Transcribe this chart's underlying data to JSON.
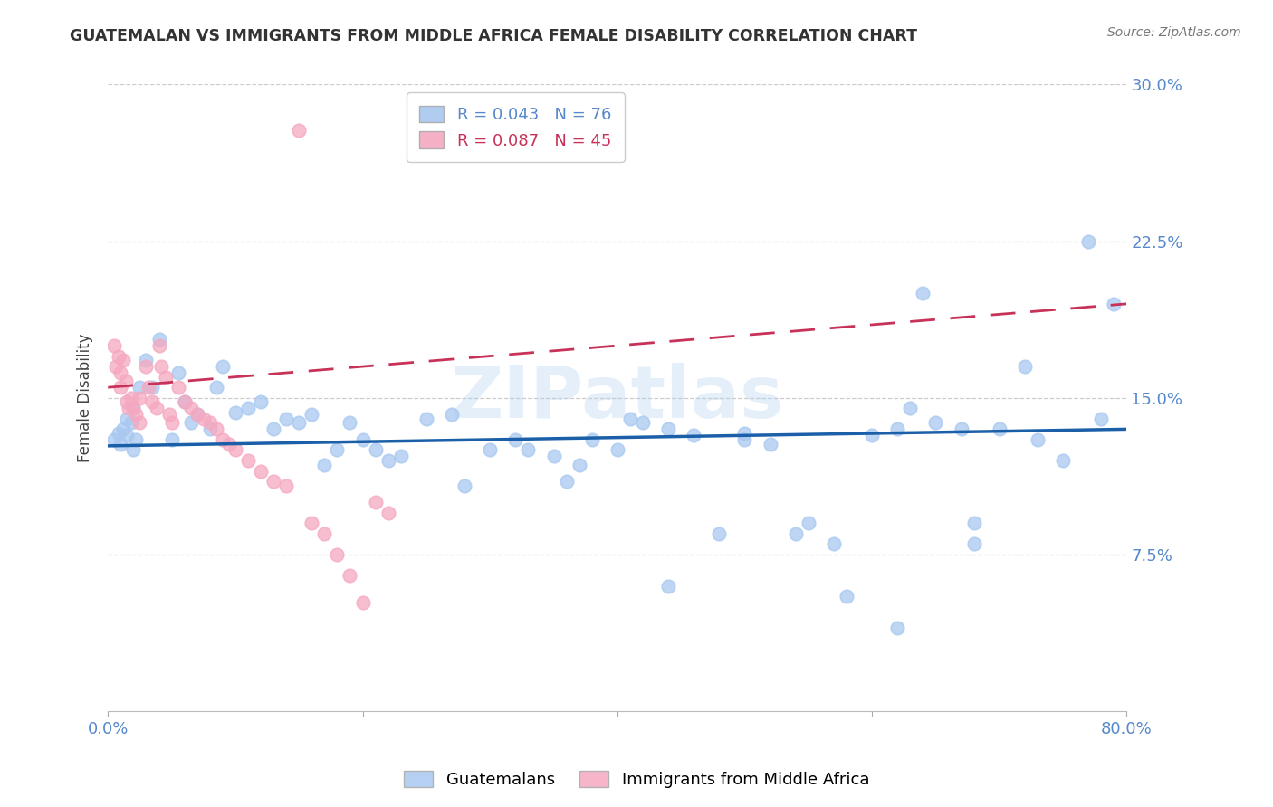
{
  "title": "GUATEMALAN VS IMMIGRANTS FROM MIDDLE AFRICA FEMALE DISABILITY CORRELATION CHART",
  "source": "Source: ZipAtlas.com",
  "ylabel": "Female Disability",
  "watermark": "ZIPatlas",
  "xlim": [
    0.0,
    0.8
  ],
  "ylim": [
    0.0,
    0.3
  ],
  "yticks": [
    0.075,
    0.15,
    0.225,
    0.3
  ],
  "yticklabels": [
    "7.5%",
    "15.0%",
    "22.5%",
    "30.0%"
  ],
  "blue_R": 0.043,
  "blue_N": 76,
  "pink_R": 0.087,
  "pink_N": 45,
  "blue_color": "#a8c8f0",
  "pink_color": "#f5a8c0",
  "blue_line_color": "#1a5fa8",
  "pink_line_color": "#c83258",
  "axis_color": "#5588cc",
  "legend_label_blue": "Guatemalans",
  "legend_label_pink": "Immigrants from Middle Africa",
  "blue_x": [
    0.005,
    0.008,
    0.01,
    0.012,
    0.015,
    0.015,
    0.018,
    0.02,
    0.02,
    0.022,
    0.025,
    0.03,
    0.035,
    0.04,
    0.05,
    0.055,
    0.06,
    0.065,
    0.07,
    0.08,
    0.085,
    0.09,
    0.1,
    0.11,
    0.12,
    0.13,
    0.14,
    0.15,
    0.16,
    0.17,
    0.18,
    0.19,
    0.2,
    0.21,
    0.22,
    0.23,
    0.25,
    0.27,
    0.28,
    0.3,
    0.32,
    0.33,
    0.35,
    0.37,
    0.38,
    0.4,
    0.41,
    0.42,
    0.44,
    0.46,
    0.48,
    0.5,
    0.52,
    0.54,
    0.55,
    0.57,
    0.58,
    0.6,
    0.62,
    0.63,
    0.65,
    0.67,
    0.68,
    0.7,
    0.72,
    0.73,
    0.75,
    0.77,
    0.78,
    0.79,
    0.5,
    0.62,
    0.68,
    0.64,
    0.44,
    0.36
  ],
  "blue_y": [
    0.13,
    0.133,
    0.128,
    0.135,
    0.14,
    0.132,
    0.138,
    0.145,
    0.125,
    0.13,
    0.155,
    0.168,
    0.155,
    0.178,
    0.13,
    0.162,
    0.148,
    0.138,
    0.142,
    0.135,
    0.155,
    0.165,
    0.143,
    0.145,
    0.148,
    0.135,
    0.14,
    0.138,
    0.142,
    0.118,
    0.125,
    0.138,
    0.13,
    0.125,
    0.12,
    0.122,
    0.14,
    0.142,
    0.108,
    0.125,
    0.13,
    0.125,
    0.122,
    0.118,
    0.13,
    0.125,
    0.14,
    0.138,
    0.135,
    0.132,
    0.085,
    0.133,
    0.128,
    0.085,
    0.09,
    0.08,
    0.055,
    0.132,
    0.135,
    0.145,
    0.138,
    0.135,
    0.09,
    0.135,
    0.165,
    0.13,
    0.12,
    0.225,
    0.14,
    0.195,
    0.13,
    0.04,
    0.08,
    0.2,
    0.06,
    0.11
  ],
  "pink_x": [
    0.005,
    0.006,
    0.008,
    0.01,
    0.01,
    0.012,
    0.014,
    0.015,
    0.016,
    0.018,
    0.02,
    0.022,
    0.025,
    0.025,
    0.03,
    0.032,
    0.035,
    0.038,
    0.04,
    0.042,
    0.045,
    0.048,
    0.05,
    0.055,
    0.06,
    0.065,
    0.07,
    0.075,
    0.08,
    0.085,
    0.09,
    0.095,
    0.1,
    0.11,
    0.12,
    0.13,
    0.14,
    0.15,
    0.16,
    0.17,
    0.18,
    0.19,
    0.2,
    0.21,
    0.22
  ],
  "pink_y": [
    0.175,
    0.165,
    0.17,
    0.155,
    0.162,
    0.168,
    0.158,
    0.148,
    0.145,
    0.15,
    0.145,
    0.142,
    0.138,
    0.15,
    0.165,
    0.155,
    0.148,
    0.145,
    0.175,
    0.165,
    0.16,
    0.142,
    0.138,
    0.155,
    0.148,
    0.145,
    0.142,
    0.14,
    0.138,
    0.135,
    0.13,
    0.128,
    0.125,
    0.12,
    0.115,
    0.11,
    0.108,
    0.278,
    0.09,
    0.085,
    0.075,
    0.065,
    0.052,
    0.1,
    0.095
  ]
}
